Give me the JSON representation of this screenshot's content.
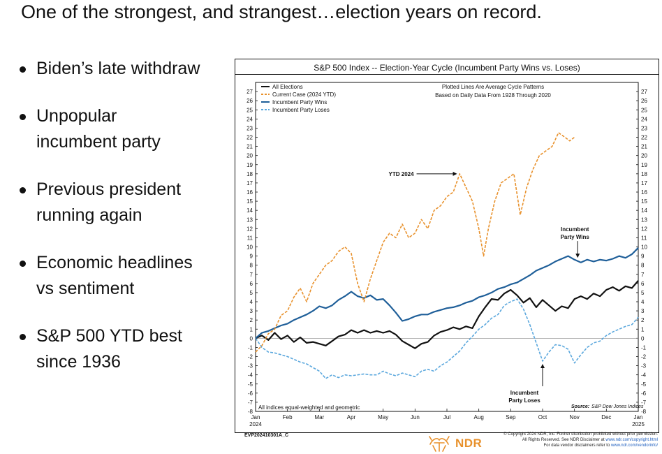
{
  "slide": {
    "title": "One of the strongest, and strangest…election years on record.",
    "bullets": [
      {
        "line1": "Biden’s late withdraw",
        "line2": ""
      },
      {
        "line1": "Unpopular",
        "line2": "incumbent party"
      },
      {
        "line1": "Previous president",
        "line2": "running again"
      },
      {
        "line1": "Economic headlines",
        "line2": "vs sentiment"
      },
      {
        "line1": "S&P 500 YTD best",
        "line2": "since 1936"
      }
    ]
  },
  "chart_data": {
    "type": "line",
    "title": "S&P 500 Index -- Election-Year Cycle (Incumbent Party Wins vs. Loses)",
    "subtitle_lines": [
      "Plotted Lines Are Average Cycle Patterns",
      "Based on Daily Data From 1928 Through 2020"
    ],
    "xlabel": "",
    "ylabel": "",
    "xlim": [
      0,
      12
    ],
    "ylim": [
      -8,
      28
    ],
    "yticks": [
      -8,
      -7,
      -6,
      -5,
      -4,
      -3,
      -2,
      -1,
      0,
      1,
      2,
      3,
      4,
      5,
      6,
      7,
      8,
      9,
      10,
      11,
      12,
      13,
      14,
      15,
      16,
      17,
      18,
      19,
      20,
      21,
      22,
      23,
      24,
      25,
      26,
      27
    ],
    "xtick_labels": [
      {
        "x": 0,
        "label": "Jan",
        "year": "2024"
      },
      {
        "x": 1,
        "label": "Feb",
        "year": ""
      },
      {
        "x": 2,
        "label": "Mar",
        "year": ""
      },
      {
        "x": 3,
        "label": "Apr",
        "year": ""
      },
      {
        "x": 4,
        "label": "May",
        "year": ""
      },
      {
        "x": 5,
        "label": "Jun",
        "year": ""
      },
      {
        "x": 6,
        "label": "Jul",
        "year": ""
      },
      {
        "x": 7,
        "label": "Aug",
        "year": ""
      },
      {
        "x": 8,
        "label": "Sep",
        "year": ""
      },
      {
        "x": 9,
        "label": "Oct",
        "year": ""
      },
      {
        "x": 10,
        "label": "Nov",
        "year": ""
      },
      {
        "x": 11,
        "label": "Dec",
        "year": ""
      },
      {
        "x": 12,
        "label": "Jan",
        "year": "2025"
      }
    ],
    "series": [
      {
        "name": "All Elections",
        "color": "#111111",
        "dash": "solid",
        "points": [
          [
            0,
            0
          ],
          [
            0.2,
            0.3
          ],
          [
            0.4,
            -0.2
          ],
          [
            0.6,
            0.6
          ],
          [
            0.8,
            -0.1
          ],
          [
            1,
            0.3
          ],
          [
            1.2,
            -0.4
          ],
          [
            1.4,
            0.1
          ],
          [
            1.6,
            -0.5
          ],
          [
            1.8,
            -0.4
          ],
          [
            2,
            -0.6
          ],
          [
            2.2,
            -0.8
          ],
          [
            2.4,
            -0.3
          ],
          [
            2.6,
            0.2
          ],
          [
            2.8,
            0.4
          ],
          [
            3,
            0.9
          ],
          [
            3.2,
            0.6
          ],
          [
            3.4,
            0.9
          ],
          [
            3.6,
            0.6
          ],
          [
            3.8,
            0.8
          ],
          [
            4,
            0.6
          ],
          [
            4.2,
            0.8
          ],
          [
            4.4,
            0.4
          ],
          [
            4.6,
            -0.3
          ],
          [
            4.8,
            -0.7
          ],
          [
            5,
            -1.1
          ],
          [
            5.2,
            -0.6
          ],
          [
            5.4,
            -0.4
          ],
          [
            5.6,
            0.3
          ],
          [
            5.8,
            0.7
          ],
          [
            6,
            0.9
          ],
          [
            6.2,
            1.2
          ],
          [
            6.4,
            1.0
          ],
          [
            6.6,
            1.3
          ],
          [
            6.8,
            1.1
          ],
          [
            7,
            2.4
          ],
          [
            7.2,
            3.4
          ],
          [
            7.4,
            4.3
          ],
          [
            7.6,
            4.2
          ],
          [
            7.8,
            4.9
          ],
          [
            8,
            5.3
          ],
          [
            8.2,
            4.7
          ],
          [
            8.4,
            3.9
          ],
          [
            8.6,
            4.4
          ],
          [
            8.8,
            3.4
          ],
          [
            9,
            4.2
          ],
          [
            9.2,
            3.6
          ],
          [
            9.4,
            3.0
          ],
          [
            9.6,
            3.5
          ],
          [
            9.8,
            3.3
          ],
          [
            10,
            4.3
          ],
          [
            10.2,
            4.6
          ],
          [
            10.4,
            4.3
          ],
          [
            10.6,
            4.9
          ],
          [
            10.8,
            4.6
          ],
          [
            11,
            5.3
          ],
          [
            11.2,
            5.6
          ],
          [
            11.4,
            5.2
          ],
          [
            11.6,
            5.7
          ],
          [
            11.8,
            5.5
          ],
          [
            12,
            6.3
          ]
        ]
      },
      {
        "name": "Current Case (2024 YTD)",
        "color": "#e8912c",
        "dash": "dashed",
        "points": [
          [
            0,
            -1.5
          ],
          [
            0.2,
            -0.8
          ],
          [
            0.4,
            0.5
          ],
          [
            0.6,
            1.0
          ],
          [
            0.8,
            2.5
          ],
          [
            1,
            3.0
          ],
          [
            1.2,
            4.5
          ],
          [
            1.4,
            5.5
          ],
          [
            1.6,
            4.0
          ],
          [
            1.8,
            6.0
          ],
          [
            2,
            7.0
          ],
          [
            2.2,
            8.0
          ],
          [
            2.4,
            8.5
          ],
          [
            2.6,
            9.5
          ],
          [
            2.8,
            10.0
          ],
          [
            3,
            9.3
          ],
          [
            3.2,
            6.0
          ],
          [
            3.4,
            4.0
          ],
          [
            3.6,
            6.5
          ],
          [
            3.8,
            8.5
          ],
          [
            4,
            10.5
          ],
          [
            4.2,
            11.5
          ],
          [
            4.4,
            11.0
          ],
          [
            4.6,
            12.5
          ],
          [
            4.8,
            11.0
          ],
          [
            5,
            11.5
          ],
          [
            5.2,
            13.0
          ],
          [
            5.4,
            12.0
          ],
          [
            5.6,
            14.0
          ],
          [
            5.8,
            14.5
          ],
          [
            6,
            15.5
          ],
          [
            6.2,
            16.0
          ],
          [
            6.4,
            18.0
          ],
          [
            6.6,
            16.5
          ],
          [
            6.8,
            15.0
          ],
          [
            7,
            12.0
          ],
          [
            7.15,
            9.0
          ],
          [
            7.3,
            12.0
          ],
          [
            7.5,
            15.0
          ],
          [
            7.7,
            17.0
          ],
          [
            7.9,
            17.5
          ],
          [
            8.1,
            18.0
          ],
          [
            8.3,
            13.5
          ],
          [
            8.5,
            16.5
          ],
          [
            8.7,
            18.5
          ],
          [
            8.9,
            20.0
          ],
          [
            9.1,
            20.5
          ],
          [
            9.3,
            21.0
          ],
          [
            9.5,
            22.5
          ],
          [
            9.7,
            22.0
          ],
          [
            9.85,
            21.6
          ],
          [
            10,
            22.0
          ]
        ]
      },
      {
        "name": "Incumbent Party Wins",
        "color": "#1f5f99",
        "dash": "solid",
        "points": [
          [
            0,
            0
          ],
          [
            0.2,
            0.6
          ],
          [
            0.4,
            0.8
          ],
          [
            0.6,
            1.1
          ],
          [
            0.8,
            1.4
          ],
          [
            1,
            1.6
          ],
          [
            1.2,
            2.0
          ],
          [
            1.4,
            2.3
          ],
          [
            1.6,
            2.6
          ],
          [
            1.8,
            3.0
          ],
          [
            2,
            3.5
          ],
          [
            2.2,
            3.3
          ],
          [
            2.4,
            3.6
          ],
          [
            2.6,
            4.2
          ],
          [
            2.8,
            4.6
          ],
          [
            3,
            5.1
          ],
          [
            3.2,
            4.6
          ],
          [
            3.4,
            4.4
          ],
          [
            3.6,
            4.7
          ],
          [
            3.8,
            4.2
          ],
          [
            4,
            4.3
          ],
          [
            4.2,
            3.6
          ],
          [
            4.4,
            2.8
          ],
          [
            4.6,
            1.9
          ],
          [
            4.8,
            2.1
          ],
          [
            5,
            2.4
          ],
          [
            5.2,
            2.6
          ],
          [
            5.4,
            2.6
          ],
          [
            5.6,
            2.9
          ],
          [
            5.8,
            3.1
          ],
          [
            6,
            3.3
          ],
          [
            6.2,
            3.4
          ],
          [
            6.4,
            3.6
          ],
          [
            6.6,
            3.9
          ],
          [
            6.8,
            4.1
          ],
          [
            7,
            4.5
          ],
          [
            7.2,
            4.7
          ],
          [
            7.4,
            5.0
          ],
          [
            7.6,
            5.4
          ],
          [
            7.8,
            5.6
          ],
          [
            8,
            5.9
          ],
          [
            8.2,
            6.1
          ],
          [
            8.4,
            6.5
          ],
          [
            8.6,
            6.9
          ],
          [
            8.8,
            7.4
          ],
          [
            9,
            7.7
          ],
          [
            9.2,
            8.0
          ],
          [
            9.4,
            8.4
          ],
          [
            9.6,
            8.7
          ],
          [
            9.8,
            9.0
          ],
          [
            10,
            8.6
          ],
          [
            10.2,
            8.3
          ],
          [
            10.4,
            8.6
          ],
          [
            10.6,
            8.4
          ],
          [
            10.8,
            8.6
          ],
          [
            11,
            8.5
          ],
          [
            11.2,
            8.7
          ],
          [
            11.4,
            9.0
          ],
          [
            11.6,
            8.8
          ],
          [
            11.8,
            9.2
          ],
          [
            12,
            9.9
          ]
        ]
      },
      {
        "name": "Incumbent Party Loses",
        "color": "#5aa7dd",
        "dash": "dashed",
        "points": [
          [
            0,
            0
          ],
          [
            0.2,
            -1.0
          ],
          [
            0.4,
            -1.5
          ],
          [
            0.6,
            -1.6
          ],
          [
            0.8,
            -1.8
          ],
          [
            1,
            -2.0
          ],
          [
            1.2,
            -2.3
          ],
          [
            1.4,
            -2.6
          ],
          [
            1.6,
            -2.8
          ],
          [
            1.8,
            -3.2
          ],
          [
            2,
            -3.6
          ],
          [
            2.2,
            -4.4
          ],
          [
            2.4,
            -4.0
          ],
          [
            2.6,
            -4.3
          ],
          [
            2.8,
            -4.0
          ],
          [
            3,
            -4.1
          ],
          [
            3.2,
            -4.0
          ],
          [
            3.4,
            -3.9
          ],
          [
            3.6,
            -4.0
          ],
          [
            3.8,
            -4.0
          ],
          [
            4,
            -3.6
          ],
          [
            4.2,
            -3.9
          ],
          [
            4.4,
            -4.1
          ],
          [
            4.6,
            -3.8
          ],
          [
            4.8,
            -4.0
          ],
          [
            5,
            -4.2
          ],
          [
            5.2,
            -3.6
          ],
          [
            5.4,
            -3.4
          ],
          [
            5.6,
            -3.6
          ],
          [
            5.8,
            -3.0
          ],
          [
            6,
            -2.6
          ],
          [
            6.2,
            -2.0
          ],
          [
            6.4,
            -1.4
          ],
          [
            6.6,
            -0.5
          ],
          [
            6.8,
            0.2
          ],
          [
            7,
            1.0
          ],
          [
            7.2,
            1.5
          ],
          [
            7.4,
            2.2
          ],
          [
            7.6,
            2.6
          ],
          [
            7.8,
            3.6
          ],
          [
            8,
            4.0
          ],
          [
            8.2,
            4.3
          ],
          [
            8.4,
            3.2
          ],
          [
            8.6,
            1.5
          ],
          [
            8.8,
            -0.5
          ],
          [
            9,
            -2.5
          ],
          [
            9.2,
            -1.5
          ],
          [
            9.4,
            -0.7
          ],
          [
            9.6,
            -0.8
          ],
          [
            9.8,
            -1.2
          ],
          [
            10,
            -2.7
          ],
          [
            10.2,
            -1.8
          ],
          [
            10.4,
            -1.0
          ],
          [
            10.6,
            -0.5
          ],
          [
            10.8,
            -0.3
          ],
          [
            11,
            0.3
          ],
          [
            11.2,
            0.7
          ],
          [
            11.4,
            1.0
          ],
          [
            11.6,
            1.3
          ],
          [
            11.8,
            1.5
          ],
          [
            12,
            2.3
          ]
        ]
      }
    ],
    "legend": {
      "placement": "top-left"
    },
    "annotations": [
      {
        "id": "ytd",
        "lines": [
          "YTD 2024"
        ],
        "target": [
          6.45,
          18.0
        ]
      },
      {
        "id": "wins",
        "lines": [
          "Incumbent",
          "Party Wins"
        ],
        "target": [
          10.1,
          8.5
        ]
      },
      {
        "id": "loses",
        "lines": [
          "Incumbent",
          "Party Loses"
        ],
        "target": [
          9.0,
          -2.5
        ]
      }
    ],
    "notes": {
      "bottom_left": "All indices equal-weighted and geometric",
      "source_label": "Source:",
      "source_value": "S&P Dow Jones Indices"
    }
  },
  "footer": {
    "code": "EVP202410301A_C",
    "logo_text": "NDR",
    "copyright_line1": "© Copyright 2024 NDR, Inc. Further distribution prohibited without prior permission.",
    "copyright_line2": "All Rights Reserved. See NDR Disclaimer at ",
    "copyright_link2": "www.ndr.com/copyright.html",
    "copyright_line3": "For data vendor disclaimers refer to ",
    "copyright_link3": "www.ndr.com/vendorinfo/"
  },
  "colors": {
    "orange": "#e8912c",
    "navy": "#1f5f99",
    "lightblue": "#5aa7dd",
    "black": "#111111"
  }
}
